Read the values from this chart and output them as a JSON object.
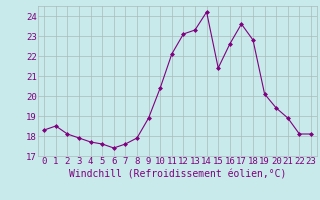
{
  "x": [
    0,
    1,
    2,
    3,
    4,
    5,
    6,
    7,
    8,
    9,
    10,
    11,
    12,
    13,
    14,
    15,
    16,
    17,
    18,
    19,
    20,
    21,
    22,
    23
  ],
  "y": [
    18.3,
    18.5,
    18.1,
    17.9,
    17.7,
    17.6,
    17.4,
    17.6,
    17.9,
    18.9,
    20.4,
    22.1,
    23.1,
    23.3,
    24.2,
    21.4,
    22.6,
    23.6,
    22.8,
    20.1,
    19.4,
    18.9,
    18.1,
    18.1
  ],
  "line_color": "#800080",
  "marker": "D",
  "marker_size": 2,
  "bg_color": "#c8eaea",
  "grid_color": "#aabbbb",
  "xlabel": "Windchill (Refroidissement éolien,°C)",
  "ylim": [
    17,
    24.5
  ],
  "yticks": [
    17,
    18,
    19,
    20,
    21,
    22,
    23,
    24
  ],
  "xticks": [
    0,
    1,
    2,
    3,
    4,
    5,
    6,
    7,
    8,
    9,
    10,
    11,
    12,
    13,
    14,
    15,
    16,
    17,
    18,
    19,
    20,
    21,
    22,
    23
  ],
  "font_color": "#800080",
  "font_size": 6.5,
  "xlabel_fontsize": 7
}
